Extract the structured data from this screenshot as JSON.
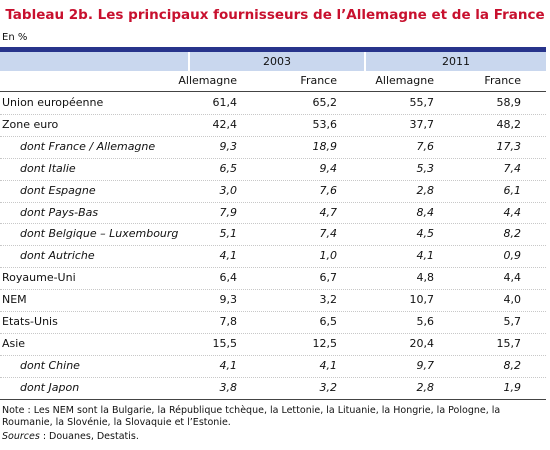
{
  "title": "Tableau 2b. Les principaux fournisseurs de l’Allemagne et de la France",
  "unit": "En %",
  "years": [
    "2003",
    "2011"
  ],
  "columns": [
    "Allemagne",
    "France",
    "Allemagne",
    "France"
  ],
  "rows": [
    {
      "label": "Union européenne",
      "values": [
        "61,4",
        "65,2",
        "55,7",
        "58,9"
      ],
      "details": []
    },
    {
      "label": "Zone euro",
      "values": [
        "42,4",
        "53,6",
        "37,7",
        "48,2"
      ],
      "details": [
        {
          "label": "dont France / Allemagne",
          "values": [
            "9,3",
            "18,9",
            "7,6",
            "17,3"
          ]
        },
        {
          "label": "dont Italie",
          "values": [
            "6,5",
            "9,4",
            "5,3",
            "7,4"
          ]
        },
        {
          "label": "dont Espagne",
          "values": [
            "3,0",
            "7,6",
            "2,8",
            "6,1"
          ]
        },
        {
          "label": "dont Pays-Bas",
          "values": [
            "7,9",
            "4,7",
            "8,4",
            "4,4"
          ]
        },
        {
          "label": "dont Belgique – Luxembourg",
          "values": [
            "5,1",
            "7,4",
            "4,5",
            "8,2"
          ]
        },
        {
          "label": "dont Autriche",
          "values": [
            "4,1",
            "1,0",
            "4,1",
            "0,9"
          ]
        }
      ]
    },
    {
      "label": "Royaume-Uni",
      "values": [
        "6,4",
        "6,7",
        "4,8",
        "4,4"
      ],
      "details": []
    },
    {
      "label": "NEM",
      "values": [
        "9,3",
        "3,2",
        "10,7",
        "4,0"
      ],
      "details": []
    },
    {
      "label": "Etats-Unis",
      "values": [
        "7,8",
        "6,5",
        "5,6",
        "5,7"
      ],
      "details": []
    },
    {
      "label": "Asie",
      "values": [
        "15,5",
        "12,5",
        "20,4",
        "15,7"
      ],
      "details": [
        {
          "label": "dont Chine",
          "values": [
            "4,1",
            "4,1",
            "9,7",
            "8,2"
          ]
        },
        {
          "label": "dont Japon",
          "values": [
            "3,8",
            "3,2",
            "2,8",
            "1,9"
          ]
        }
      ]
    }
  ],
  "note": "Note : Les NEM sont la Bulgarie, la République tchèque, la Lettonie, la Lituanie, la Hongrie, la Pologne, la Roumanie, la Slovénie, la Slovaquie et l’Estonie.",
  "sources_label": "Sources",
  "sources_text": " : Douanes, Destatis."
}
